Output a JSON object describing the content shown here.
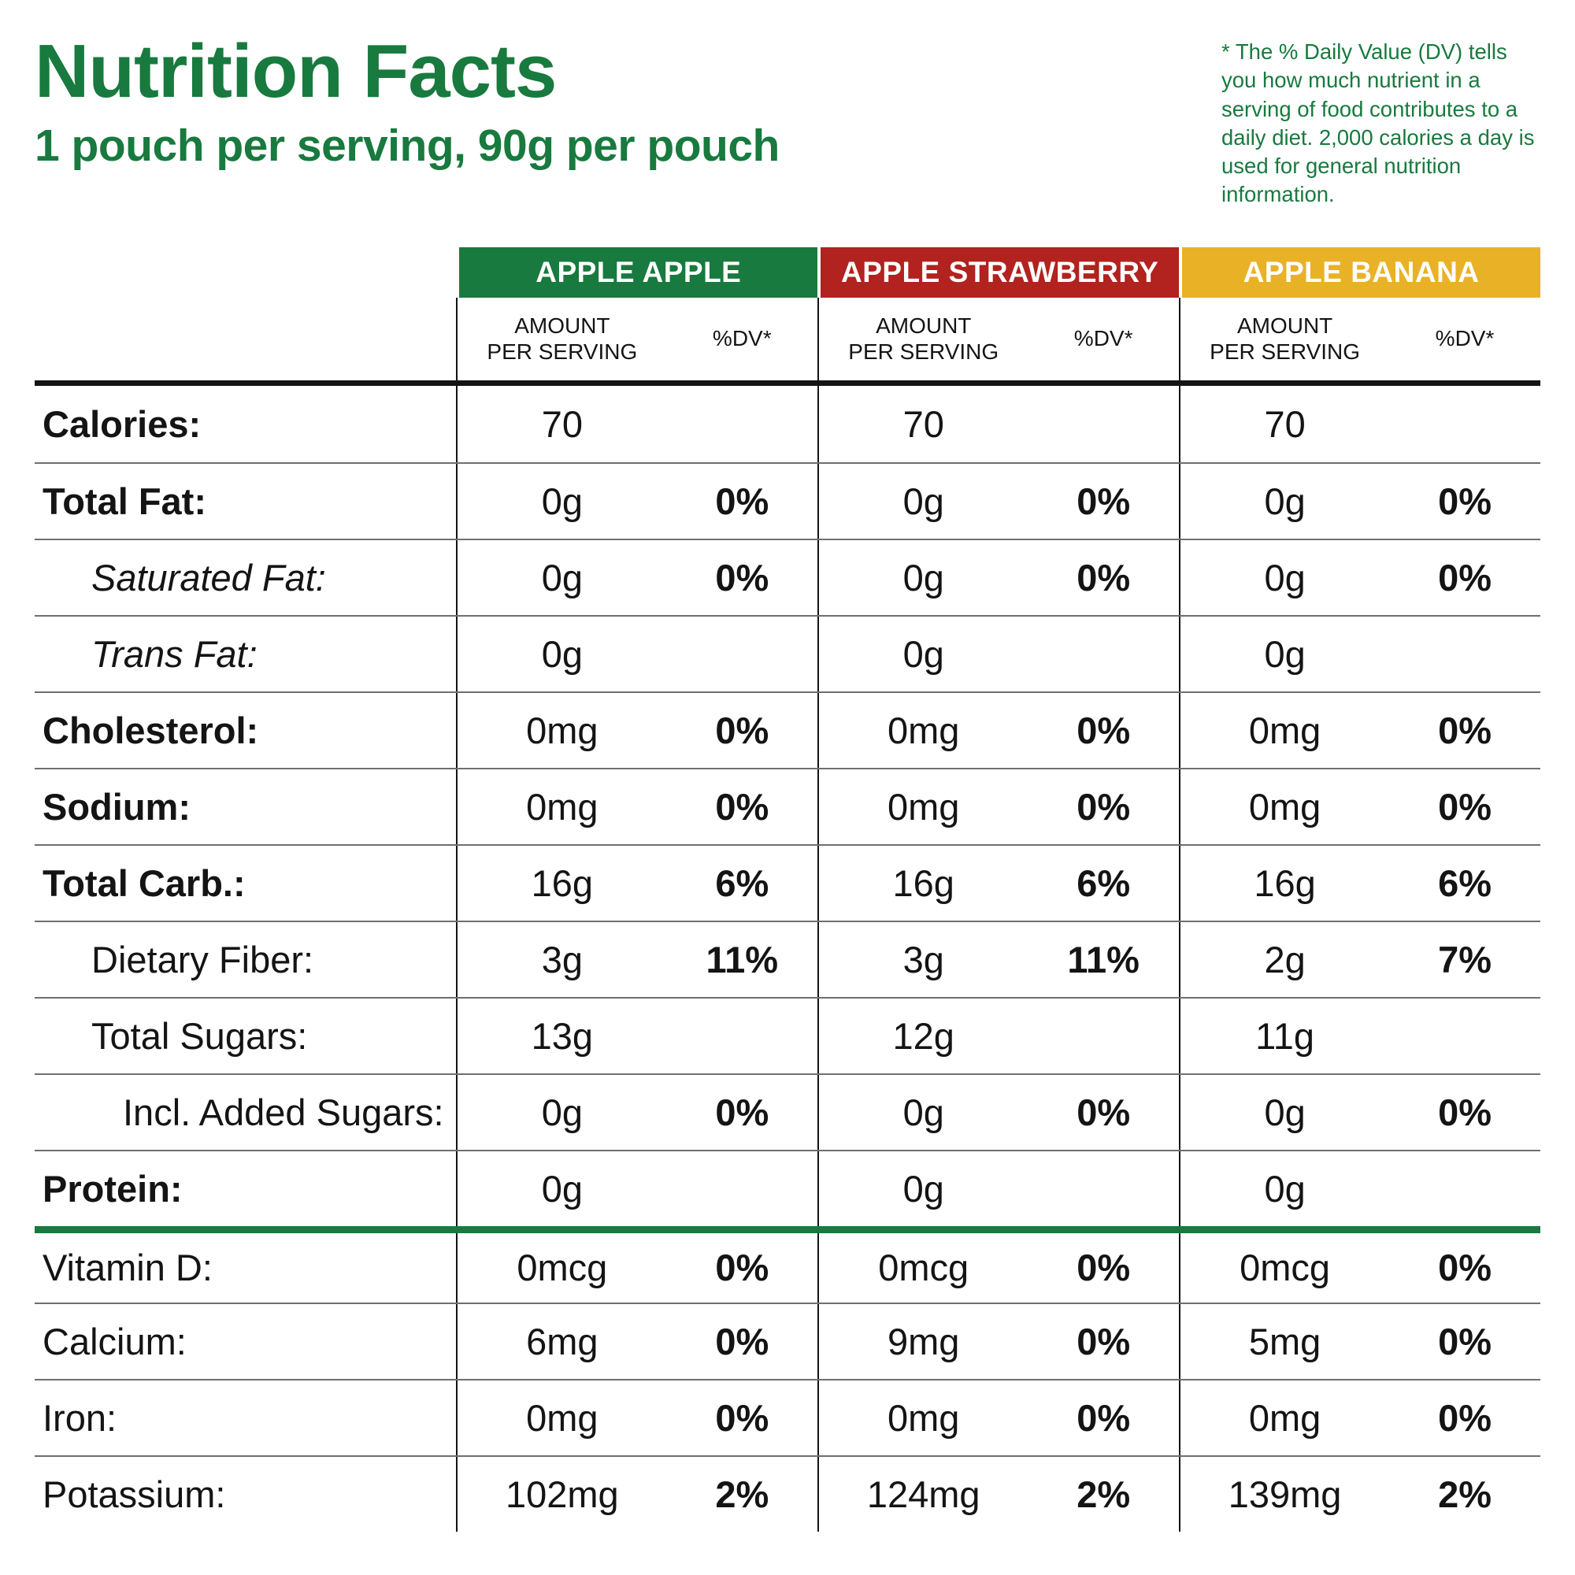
{
  "header": {
    "title": "Nutrition Facts",
    "subtitle": "1 pouch per serving, 90g per pouch",
    "footnote": "* The % Daily Value (DV) tells you how much nutrient in a serving of food contributes to a daily diet. 2,000 calories a day is used for general nutrition information."
  },
  "colors": {
    "green": "#187a3e",
    "red": "#b2221e",
    "yellow": "#e9b226",
    "ink": "#141414"
  },
  "columns": [
    {
      "name": "APPLE APPLE",
      "color": "#187a3e"
    },
    {
      "name": "APPLE STRAWBERRY",
      "color": "#b2221e"
    },
    {
      "name": "APPLE BANANA",
      "color": "#e9b226"
    }
  ],
  "subheaders": {
    "amount": "AMOUNT\nPER SERVING",
    "dv": "%DV*"
  },
  "rows": [
    {
      "label": "Calories:",
      "bold": true,
      "level": 0,
      "cells": [
        {
          "amount": "70",
          "dv": ""
        },
        {
          "amount": "70",
          "dv": ""
        },
        {
          "amount": "70",
          "dv": ""
        }
      ]
    },
    {
      "label": "Total Fat:",
      "bold": true,
      "level": 0,
      "cells": [
        {
          "amount": "0g",
          "dv": "0%"
        },
        {
          "amount": "0g",
          "dv": "0%"
        },
        {
          "amount": "0g",
          "dv": "0%"
        }
      ]
    },
    {
      "label": "Saturated Fat:",
      "italic": true,
      "level": 1,
      "cells": [
        {
          "amount": "0g",
          "dv": "0%"
        },
        {
          "amount": "0g",
          "dv": "0%"
        },
        {
          "amount": "0g",
          "dv": "0%"
        }
      ]
    },
    {
      "label": "Trans Fat:",
      "italic": true,
      "level": 1,
      "cells": [
        {
          "amount": "0g",
          "dv": ""
        },
        {
          "amount": "0g",
          "dv": ""
        },
        {
          "amount": "0g",
          "dv": ""
        }
      ]
    },
    {
      "label": "Cholesterol:",
      "bold": true,
      "level": 0,
      "cells": [
        {
          "amount": "0mg",
          "dv": "0%"
        },
        {
          "amount": "0mg",
          "dv": "0%"
        },
        {
          "amount": "0mg",
          "dv": "0%"
        }
      ]
    },
    {
      "label": "Sodium:",
      "bold": true,
      "level": 0,
      "cells": [
        {
          "amount": "0mg",
          "dv": "0%"
        },
        {
          "amount": "0mg",
          "dv": "0%"
        },
        {
          "amount": "0mg",
          "dv": "0%"
        }
      ]
    },
    {
      "label": "Total Carb.:",
      "bold": true,
      "level": 0,
      "cells": [
        {
          "amount": "16g",
          "dv": "6%"
        },
        {
          "amount": "16g",
          "dv": "6%"
        },
        {
          "amount": "16g",
          "dv": "6%"
        }
      ]
    },
    {
      "label": "Dietary Fiber:",
      "level": 1,
      "cells": [
        {
          "amount": "3g",
          "dv": "11%"
        },
        {
          "amount": "3g",
          "dv": "11%"
        },
        {
          "amount": "2g",
          "dv": "7%"
        }
      ]
    },
    {
      "label": "Total Sugars:",
      "level": 1,
      "cells": [
        {
          "amount": "13g",
          "dv": ""
        },
        {
          "amount": "12g",
          "dv": ""
        },
        {
          "amount": "11g",
          "dv": ""
        }
      ]
    },
    {
      "label": "Incl. Added Sugars:",
      "level": 2,
      "cells": [
        {
          "amount": "0g",
          "dv": "0%"
        },
        {
          "amount": "0g",
          "dv": "0%"
        },
        {
          "amount": "0g",
          "dv": "0%"
        }
      ]
    },
    {
      "label": "Protein:",
      "bold": true,
      "level": 0,
      "cells": [
        {
          "amount": "0g",
          "dv": ""
        },
        {
          "amount": "0g",
          "dv": ""
        },
        {
          "amount": "0g",
          "dv": ""
        }
      ]
    },
    {
      "label": "Vitamin D:",
      "level": 0,
      "divider": "green",
      "cells": [
        {
          "amount": "0mcg",
          "dv": "0%"
        },
        {
          "amount": "0mcg",
          "dv": "0%"
        },
        {
          "amount": "0mcg",
          "dv": "0%"
        }
      ]
    },
    {
      "label": "Calcium:",
      "level": 0,
      "cells": [
        {
          "amount": "6mg",
          "dv": "0%"
        },
        {
          "amount": "9mg",
          "dv": "0%"
        },
        {
          "amount": "5mg",
          "dv": "0%"
        }
      ]
    },
    {
      "label": "Iron:",
      "level": 0,
      "cells": [
        {
          "amount": "0mg",
          "dv": "0%"
        },
        {
          "amount": "0mg",
          "dv": "0%"
        },
        {
          "amount": "0mg",
          "dv": "0%"
        }
      ]
    },
    {
      "label": "Potassium:",
      "level": 0,
      "cells": [
        {
          "amount": "102mg",
          "dv": "2%"
        },
        {
          "amount": "124mg",
          "dv": "2%"
        },
        {
          "amount": "139mg",
          "dv": "2%"
        }
      ]
    }
  ]
}
